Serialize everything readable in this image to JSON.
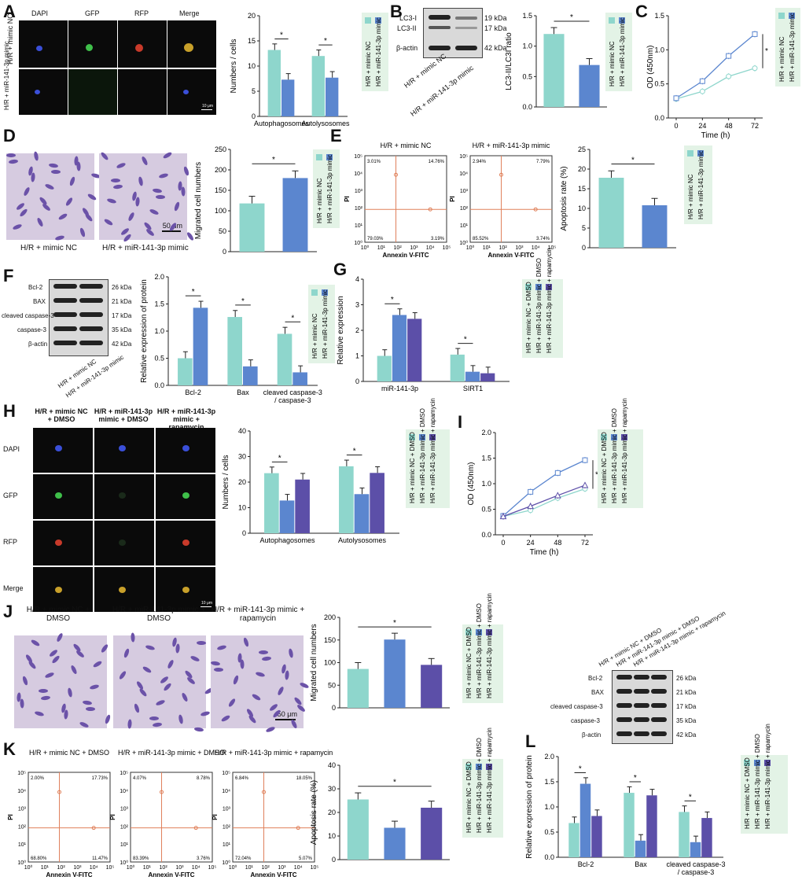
{
  "colors": {
    "nc": "#8ed6cc",
    "mimic": "#5b86cf",
    "rapa": "#5c4fa8",
    "legend_bg": "#e3f3e6",
    "flow_line": "#e0805a"
  },
  "panels": {
    "A": {
      "label": "A",
      "cols": [
        "DAPI",
        "GFP",
        "RFP",
        "Merge"
      ],
      "rows": [
        "H/R + mimic NC",
        "H/R + miR-141-3p mimic"
      ],
      "scale": "10 μm",
      "chart_data": {
        "type": "bar",
        "categories": [
          "Autophagosomes",
          "Autolysosomes"
        ],
        "series": [
          {
            "name": "H/R + mimic NC",
            "values": [
              13.2,
              12.0
            ]
          },
          {
            "name": "H/R + miR-141-3p mimic",
            "values": [
              7.3,
              7.7
            ]
          }
        ],
        "ylabel": "Numbers / cells",
        "ylim": [
          0,
          20
        ],
        "yticks": [
          0,
          5,
          10,
          15,
          20
        ],
        "sig": "*"
      },
      "legend": [
        "H/R + mimic NC",
        "H/R + miR-141-3p mimic"
      ]
    },
    "B": {
      "label": "B",
      "blot_labels": [
        "LC3-I",
        "LC3-II",
        "β-actin"
      ],
      "kda": [
        "19 kDa",
        "17 kDa",
        "42 kDa"
      ],
      "lanes": [
        "H/R + mimic NC",
        "H/R + miR-141-3p mimic"
      ],
      "chart_data": {
        "type": "bar",
        "categories": [
          "H/R + mimic NC",
          "H/R + miR-141-3p mimic"
        ],
        "values": [
          1.2,
          0.69
        ],
        "ylabel": "LC3-II/LC3I ratio",
        "ylim": [
          0,
          1.5
        ],
        "yticks": [
          0.0,
          0.5,
          1.0,
          1.5
        ],
        "sig": "*"
      },
      "legend": [
        "H/R + mimic NC",
        "H/R + miR-141-3p mimic"
      ]
    },
    "C": {
      "label": "C",
      "chart_data": {
        "type": "line",
        "x": [
          0,
          24,
          48,
          72
        ],
        "series": [
          {
            "name": "H/R + mimic NC",
            "values": [
              0.28,
              0.39,
              0.61,
              0.73
            ]
          },
          {
            "name": "H/R + miR-141-3p mimic",
            "values": [
              0.29,
              0.54,
              0.91,
              1.23
            ]
          }
        ],
        "xlabel": "Time (h)",
        "ylabel": "OD (450nm)",
        "ylim": [
          0,
          1.5
        ],
        "yticks": [
          0.0,
          0.5,
          1.0,
          1.5
        ],
        "sig": "*"
      },
      "legend": [
        "H/R + mimic NC",
        "H/R + miR-141-3p mimic"
      ]
    },
    "D": {
      "label": "D",
      "images": [
        "H/R + mimic NC",
        "H/R + miR-141-3p mimic"
      ],
      "scale": "50 μm",
      "chart_data": {
        "type": "bar",
        "categories": [
          "H/R + mimic NC",
          "H/R + miR-141-3p mimic"
        ],
        "values": [
          118,
          180
        ],
        "ylabel": "Migrated cell numbers",
        "ylim": [
          0,
          250
        ],
        "yticks": [
          0,
          50,
          100,
          150,
          200,
          250
        ],
        "sig": "*"
      },
      "legend": [
        "H/R + mimic NC",
        "H/R + miR-141-3p mimic"
      ]
    },
    "E": {
      "label": "E",
      "plots": [
        {
          "title": "H/R + mimic NC",
          "q": [
            "3.01%",
            "14.76%",
            "79.03%",
            "3.19%"
          ]
        },
        {
          "title": "H/R + miR-141-3p mimic",
          "q": [
            "2.94%",
            "7.79%",
            "85.52%",
            "3.74%"
          ]
        }
      ],
      "xlabel": "Annexin V-FITC",
      "ylabel": "PI",
      "chart_data": {
        "type": "bar",
        "categories": [
          "H/R + mimic NC",
          "H/R + miR-141-3p mimic"
        ],
        "values": [
          17.8,
          10.8
        ],
        "ylabel": "Apoptosis rate (%)",
        "ylim": [
          0,
          25
        ],
        "yticks": [
          0,
          5,
          10,
          15,
          20,
          25
        ],
        "sig": "*"
      },
      "legend": [
        "H/R + mimic NC",
        "H/R + miR-141-3p mimic"
      ]
    },
    "F": {
      "label": "F",
      "blot_labels": [
        "Bcl-2",
        "BAX",
        "cleaved caspase-3",
        "caspase-3",
        "β-actin"
      ],
      "kda": [
        "26 kDa",
        "21 kDa",
        "17 kDa",
        "35 kDa",
        "42 kDa"
      ],
      "lanes": [
        "H/R + mimic NC",
        "H/R + miR-141-3p mimic"
      ],
      "chart_data": {
        "type": "bar",
        "categories": [
          "Bcl-2",
          "Bax",
          "cleaved caspase-3 / caspase-3"
        ],
        "series": [
          {
            "name": "H/R + mimic NC",
            "values": [
              0.5,
              1.26,
              0.95
            ]
          },
          {
            "name": "H/R + miR-141-3p mimic",
            "values": [
              1.43,
              0.35,
              0.24
            ]
          }
        ],
        "ylabel": "Relative expression of protein",
        "ylim": [
          0,
          2.0
        ],
        "yticks": [
          0.0,
          0.5,
          1.0,
          1.5,
          2.0
        ],
        "sig": "*"
      },
      "legend": [
        "H/R + mimic NC",
        "H/R + miR-141-3p mimic"
      ]
    },
    "G": {
      "label": "G",
      "chart_data": {
        "type": "bar",
        "categories": [
          "miR-141-3p",
          "SIRT1"
        ],
        "series": [
          {
            "name": "H/R + mimic NC + DMSO",
            "values": [
              1.0,
              1.05
            ]
          },
          {
            "name": "H/R + miR-141-3p mimic + DMSO",
            "values": [
              2.6,
              0.38
            ]
          },
          {
            "name": "H/R + miR-141-3p mimic + rapamycin",
            "values": [
              2.45,
              0.32
            ]
          }
        ],
        "ylabel": "Relative expression",
        "ylim": [
          0,
          4
        ],
        "yticks": [
          0,
          1,
          2,
          3,
          4
        ],
        "sig": "*"
      },
      "legend": [
        "H/R + mimic NC + DMSO",
        "H/R + miR-141-3p mimic + DMSO",
        "H/R + miR-141-3p mimic + rapamycin"
      ]
    },
    "H": {
      "label": "H",
      "cols": [
        "H/R + mimic NC + DMSO",
        "H/R + miR-141-3p mimic + DMSO",
        "H/R + miR-141-3p mimic + rapamycin"
      ],
      "rows": [
        "DAPI",
        "GFP",
        "RFP",
        "Merge"
      ],
      "scale": "10 μm",
      "chart_data": {
        "type": "bar",
        "categories": [
          "Autophagosomes",
          "Autolysosomes"
        ],
        "series": [
          {
            "name": "H/R + mimic NC + DMSO",
            "values": [
              23.5,
              26.2
            ]
          },
          {
            "name": "H/R + miR-141-3p mimic + DMSO",
            "values": [
              12.8,
              15.3
            ]
          },
          {
            "name": "H/R + miR-141-3p mimic + rapamycin",
            "values": [
              21.0,
              23.6
            ]
          }
        ],
        "ylabel": "Numbers / cells",
        "ylim": [
          0,
          40
        ],
        "yticks": [
          0,
          10,
          20,
          30,
          40
        ],
        "sig": "*"
      },
      "legend": [
        "H/R + mimic NC + DMSO",
        "H/R + miR-141-3p mimic + DMSO",
        "H/R + miR-141-3p mimic + rapamycin"
      ]
    },
    "I": {
      "label": "I",
      "chart_data": {
        "type": "line",
        "x": [
          0,
          24,
          48,
          72
        ],
        "series": [
          {
            "name": "H/R + mimic NC + DMSO",
            "values": [
              0.36,
              0.48,
              0.72,
              0.9
            ]
          },
          {
            "name": "H/R + miR-141-3p mimic + DMSO",
            "values": [
              0.37,
              0.84,
              1.21,
              1.46
            ]
          },
          {
            "name": "H/R + miR-141-3p mimic + rapamycin",
            "values": [
              0.36,
              0.56,
              0.77,
              0.97
            ]
          }
        ],
        "xlabel": "Time (h)",
        "ylabel": "OD (450nm)",
        "ylim": [
          0,
          2.0
        ],
        "yticks": [
          0.0,
          0.5,
          1.0,
          1.5,
          2.0
        ],
        "sig": "*"
      },
      "legend": [
        "H/R + mimic NC + DMSO",
        "H/R + miR-141-3p mimic + DMSO",
        "H/R + miR-141-3p mimic + rapamycin"
      ]
    },
    "J": {
      "label": "J",
      "images": [
        "H/R + mimic NC + DMSO",
        "H/R + miR-141-3p mimic + DMSO",
        "H/R + miR-141-3p mimic + rapamycin"
      ],
      "scale": "50 μm",
      "chart_data": {
        "type": "bar",
        "categories": [
          "H/R + mimic NC + DMSO",
          "H/R + miR-141-3p mimic + DMSO",
          "H/R + miR-141-3p mimic + rapamycin"
        ],
        "values": [
          86,
          151,
          95
        ],
        "ylabel": "Migrated cell numbers",
        "ylim": [
          0,
          200
        ],
        "yticks": [
          0,
          50,
          100,
          150,
          200
        ],
        "sig": "*"
      },
      "legend": [
        "H/R + mimic NC + DMSO",
        "H/R + miR-141-3p mimic + DMSO",
        "H/R + miR-141-3p mimic + rapamycin"
      ]
    },
    "K": {
      "label": "K",
      "plots": [
        {
          "title": "H/R + mimic NC + DMSO",
          "q": [
            "2.00%",
            "17.73%",
            "68.80%",
            "11.47%"
          ]
        },
        {
          "title": "H/R + miR-141-3p mimic + DMSO",
          "q": [
            "4.07%",
            "8.78%",
            "83.39%",
            "3.76%"
          ]
        },
        {
          "title": "H/R + miR-141-3p mimic + rapamycin",
          "q": [
            "6.84%",
            "18.05%",
            "72.04%",
            "5.07%"
          ]
        }
      ],
      "xlabel": "Annexin V-FITC",
      "ylabel": "PI",
      "chart_data": {
        "type": "bar",
        "categories": [
          "H/R + mimic NC + DMSO",
          "H/R + miR-141-3p mimic + DMSO",
          "H/R + miR-141-3p mimic + rapamycin"
        ],
        "values": [
          25.5,
          13.5,
          22.0
        ],
        "ylabel": "Apoptosis rate (%)",
        "ylim": [
          0,
          40
        ],
        "yticks": [
          0,
          10,
          20,
          30,
          40
        ],
        "sig": "*"
      },
      "legend": [
        "H/R + mimic NC + DMSO",
        "H/R + miR-141-3p mimic + DMSO",
        "H/R + miR-141-3p mimic + rapamycin"
      ]
    },
    "Lblot": {
      "blot_labels": [
        "Bcl-2",
        "BAX",
        "cleaved caspase-3",
        "caspase-3",
        "β-actin"
      ],
      "kda": [
        "26 kDa",
        "21 kDa",
        "17 kDa",
        "35 kDa",
        "42 kDa"
      ],
      "lanes": [
        "H/R + mimic NC + DMSO",
        "H/R + miR-141-3p mimic + DMSO",
        "H/R + miR-141-3p mimic + rapamycin"
      ]
    },
    "L": {
      "label": "L",
      "chart_data": {
        "type": "bar",
        "categories": [
          "Bcl-2",
          "Bax",
          "cleaved caspase-3 / caspase-3"
        ],
        "series": [
          {
            "name": "H/R + mimic NC + DMSO",
            "values": [
              0.68,
              1.28,
              0.9
            ]
          },
          {
            "name": "H/R + miR-141-3p mimic + DMSO",
            "values": [
              1.46,
              0.33,
              0.3
            ]
          },
          {
            "name": "H/R + miR-141-3p mimic + rapamycin",
            "values": [
              0.82,
              1.23,
              0.78
            ]
          }
        ],
        "ylabel": "Relative expression of protein",
        "ylim": [
          0,
          2.0
        ],
        "yticks": [
          0.0,
          0.5,
          1.0,
          1.5,
          2.0
        ],
        "sig": "*"
      },
      "legend": [
        "H/R + mimic NC + DMSO",
        "H/R + miR-141-3p mimic + DMSO",
        "H/R + miR-141-3p mimic + rapamycin"
      ]
    }
  }
}
